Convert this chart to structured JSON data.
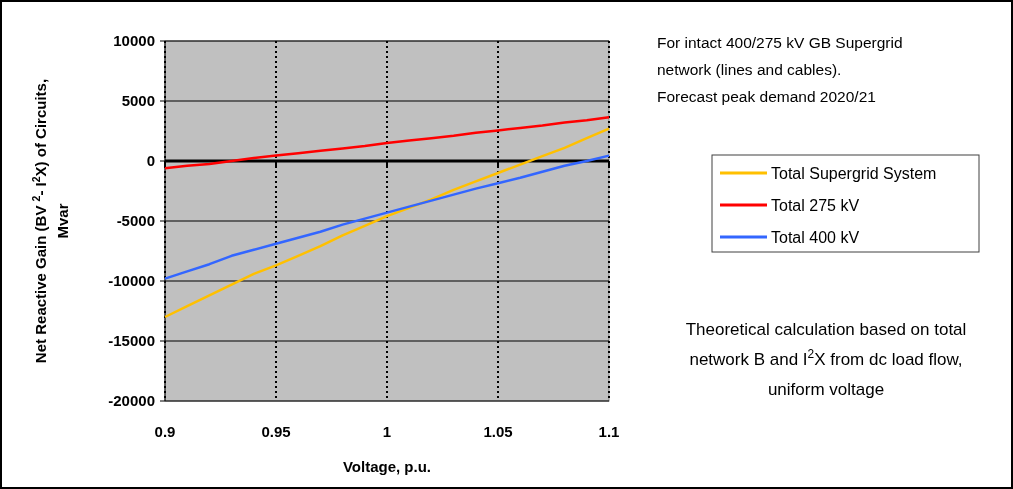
{
  "chart_data": {
    "type": "line",
    "xlabel": "Voltage, p.u.",
    "ylabel": "Net Reactive Gain (BV $^{2}$- I$^{2}$X) of Circuits,\nMvar",
    "x": [
      0.9,
      0.91,
      0.92,
      0.93,
      0.94,
      0.95,
      0.96,
      0.97,
      0.98,
      0.99,
      1.0,
      1.01,
      1.02,
      1.03,
      1.04,
      1.05,
      1.06,
      1.07,
      1.08,
      1.09,
      1.1
    ],
    "series": [
      {
        "name": "Total Supergrid System",
        "color": "#ffc000",
        "values": [
          -13000,
          -12100,
          -11200,
          -10300,
          -9400,
          -8700,
          -7900,
          -7100,
          -6200,
          -5400,
          -4600,
          -3900,
          -3200,
          -2400,
          -1700,
          -1000,
          -300,
          400,
          1100,
          1900,
          2700
        ]
      },
      {
        "name": "Total 275 kV",
        "color": "#ff0000",
        "values": [
          -600,
          -400,
          -250,
          0,
          250,
          450,
          650,
          850,
          1050,
          1250,
          1500,
          1700,
          1900,
          2100,
          2350,
          2550,
          2750,
          2950,
          3200,
          3400,
          3650
        ]
      },
      {
        "name": "Total 400 kV",
        "color": "#3366ff",
        "values": [
          -9800,
          -9200,
          -8600,
          -7900,
          -7400,
          -6900,
          -6400,
          -5900,
          -5300,
          -4800,
          -4300,
          -3800,
          -3300,
          -2800,
          -2300,
          -1850,
          -1400,
          -900,
          -400,
          0,
          450
        ]
      }
    ],
    "xlim": [
      0.9,
      1.1
    ],
    "xticks": [
      0.9,
      0.95,
      1,
      1.05,
      1.1
    ],
    "ylim": [
      -20000,
      10000
    ],
    "yticks": [
      -20000,
      -15000,
      -10000,
      -5000,
      0,
      5000,
      10000
    ],
    "grid": true,
    "legend": "right",
    "marker": "none",
    "line_style": "solid",
    "annotations": [
      "For intact 400/275 kV GB Supergrid\nnetwork (lines and cables).\nForecast peak demand 2020/21",
      "Theoretical calculation based on total\nnetwork B and I$^{2}$X from dc load flow,\nuniform voltage"
    ]
  }
}
